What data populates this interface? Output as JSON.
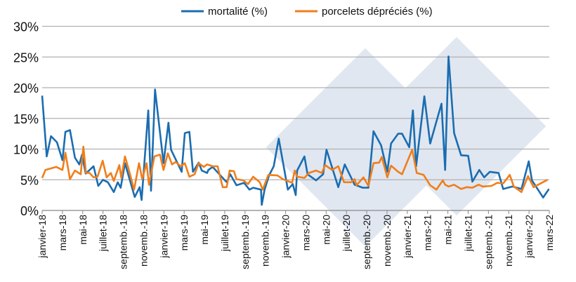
{
  "chart_data": {
    "type": "line",
    "title": "",
    "xlabel": "",
    "ylabel": "",
    "ylim": [
      0,
      30
    ],
    "xlim": [
      "2018-01-01",
      "2022-03-01"
    ],
    "grid": "horizontal",
    "legend_position": "top",
    "y_ticks": [
      "0%",
      "5%",
      "10%",
      "15%",
      "20%",
      "25%",
      "30%"
    ],
    "x_ticks": [
      "janvier-18",
      "mars-18",
      "mai-18",
      "juillet-18",
      "septemb.-18",
      "novemb.-18",
      "janvier-19",
      "mars-19",
      "mai-19",
      "juillet-19",
      "septemb.-19",
      "novemb.-19",
      "janvier-20",
      "mars-20",
      "mai-20",
      "juillet-20",
      "septemb.-20",
      "novemb.-20",
      "janvier-21",
      "mars-21",
      "mai-21",
      "juillet-21",
      "septemb.-21",
      "novemb.-21",
      "janvier-22",
      "mars-22"
    ],
    "series": [
      {
        "name": "mortalité (%)",
        "color": "#1b6db0",
        "points": [
          [
            "2018-01-01",
            18.7
          ],
          [
            "2018-01-15",
            8.8
          ],
          [
            "2018-01-28",
            12.1
          ],
          [
            "2018-02-14",
            11.1
          ],
          [
            "2018-03-01",
            8.2
          ],
          [
            "2018-03-10",
            12.8
          ],
          [
            "2018-03-24",
            13.1
          ],
          [
            "2018-04-08",
            8.6
          ],
          [
            "2018-04-21",
            7.5
          ],
          [
            "2018-04-29",
            9.1
          ],
          [
            "2018-05-10",
            6.0
          ],
          [
            "2018-06-03",
            7.2
          ],
          [
            "2018-06-17",
            4.0
          ],
          [
            "2018-07-01",
            5.0
          ],
          [
            "2018-07-16",
            4.6
          ],
          [
            "2018-08-03",
            3.0
          ],
          [
            "2018-08-15",
            4.6
          ],
          [
            "2018-08-24",
            3.7
          ],
          [
            "2018-09-06",
            7.7
          ],
          [
            "2018-10-05",
            2.2
          ],
          [
            "2018-10-20",
            3.8
          ],
          [
            "2018-10-26",
            1.7
          ],
          [
            "2018-11-15",
            16.3
          ],
          [
            "2018-11-23",
            3.2
          ],
          [
            "2018-12-05",
            19.7
          ],
          [
            "2018-12-31",
            7.7
          ],
          [
            "2019-01-15",
            14.3
          ],
          [
            "2019-01-23",
            9.9
          ],
          [
            "2019-02-22",
            6.3
          ],
          [
            "2019-03-03",
            12.6
          ],
          [
            "2019-03-17",
            12.8
          ],
          [
            "2019-03-28",
            6.3
          ],
          [
            "2019-04-14",
            7.8
          ],
          [
            "2019-04-23",
            6.5
          ],
          [
            "2019-05-09",
            6.1
          ],
          [
            "2019-05-13",
            6.6
          ],
          [
            "2019-05-26",
            7.1
          ],
          [
            "2019-07-07",
            4.6
          ],
          [
            "2019-07-18",
            5.9
          ],
          [
            "2019-08-06",
            4.1
          ],
          [
            "2019-08-29",
            4.5
          ],
          [
            "2019-09-14",
            3.4
          ],
          [
            "2019-09-25",
            3.7
          ],
          [
            "2019-10-19",
            3.4
          ],
          [
            "2019-10-21",
            0.9
          ],
          [
            "2019-10-30",
            3.4
          ],
          [
            "2019-11-12",
            5.7
          ],
          [
            "2019-11-26",
            7.2
          ],
          [
            "2019-12-11",
            11.7
          ],
          [
            "2020-01-08",
            3.4
          ],
          [
            "2020-01-23",
            4.3
          ],
          [
            "2020-02-01",
            2.5
          ],
          [
            "2020-02-05",
            6.5
          ],
          [
            "2020-02-26",
            8.8
          ],
          [
            "2020-03-06",
            5.9
          ],
          [
            "2020-04-01",
            4.9
          ],
          [
            "2020-04-22",
            5.9
          ],
          [
            "2020-05-02",
            9.9
          ],
          [
            "2020-06-07",
            3.8
          ],
          [
            "2020-06-26",
            7.5
          ],
          [
            "2020-07-26",
            4.2
          ],
          [
            "2020-08-20",
            3.7
          ],
          [
            "2020-09-06",
            3.7
          ],
          [
            "2020-09-21",
            12.9
          ],
          [
            "2020-10-14",
            10.6
          ],
          [
            "2020-11-02",
            6.3
          ],
          [
            "2020-11-13",
            10.9
          ],
          [
            "2020-12-04",
            12.5
          ],
          [
            "2020-12-16",
            12.5
          ],
          [
            "2021-01-07",
            10.3
          ],
          [
            "2021-01-18",
            16.3
          ],
          [
            "2021-01-28",
            7.2
          ],
          [
            "2021-02-20",
            18.6
          ],
          [
            "2021-03-09",
            10.9
          ],
          [
            "2021-04-12",
            17.4
          ],
          [
            "2021-04-23",
            6.6
          ],
          [
            "2021-05-03",
            25.1
          ],
          [
            "2021-05-20",
            12.6
          ],
          [
            "2021-06-10",
            9.0
          ],
          [
            "2021-07-01",
            8.9
          ],
          [
            "2021-07-14",
            4.7
          ],
          [
            "2021-08-04",
            6.6
          ],
          [
            "2021-08-19",
            5.4
          ],
          [
            "2021-09-05",
            6.3
          ],
          [
            "2021-10-01",
            6.1
          ],
          [
            "2021-10-15",
            3.5
          ],
          [
            "2021-11-12",
            3.9
          ],
          [
            "2021-12-09",
            3.5
          ],
          [
            "2021-12-31",
            8.0
          ],
          [
            "2022-01-10",
            4.9
          ],
          [
            "2022-02-12",
            2.1
          ],
          [
            "2022-02-28",
            3.5
          ]
        ]
      },
      {
        "name": "porcelets dépréciés (%)",
        "color": "#f07e1b",
        "points": [
          [
            "2018-01-01",
            5.3
          ],
          [
            "2018-01-11",
            6.6
          ],
          [
            "2018-02-12",
            7.1
          ],
          [
            "2018-03-01",
            6.6
          ],
          [
            "2018-03-10",
            9.4
          ],
          [
            "2018-03-24",
            5.1
          ],
          [
            "2018-04-08",
            6.5
          ],
          [
            "2018-04-25",
            5.9
          ],
          [
            "2018-05-03",
            10.4
          ],
          [
            "2018-05-11",
            6.1
          ],
          [
            "2018-05-22",
            6.1
          ],
          [
            "2018-06-03",
            5.4
          ],
          [
            "2018-06-15",
            5.5
          ],
          [
            "2018-06-30",
            8.1
          ],
          [
            "2018-07-12",
            5.4
          ],
          [
            "2018-07-25",
            6.1
          ],
          [
            "2018-08-03",
            4.8
          ],
          [
            "2018-08-20",
            7.4
          ],
          [
            "2018-08-26",
            5.3
          ],
          [
            "2018-09-06",
            8.8
          ],
          [
            "2018-09-18",
            6.5
          ],
          [
            "2018-10-03",
            3.4
          ],
          [
            "2018-10-18",
            7.7
          ],
          [
            "2018-10-28",
            5.1
          ],
          [
            "2018-11-10",
            7.7
          ],
          [
            "2018-11-17",
            4.2
          ],
          [
            "2018-12-03",
            8.8
          ],
          [
            "2018-12-20",
            9.1
          ],
          [
            "2018-12-31",
            6.6
          ],
          [
            "2019-01-13",
            9.3
          ],
          [
            "2019-01-26",
            7.5
          ],
          [
            "2019-02-05",
            7.9
          ],
          [
            "2019-02-20",
            7.2
          ],
          [
            "2019-03-03",
            7.7
          ],
          [
            "2019-03-17",
            5.5
          ],
          [
            "2019-04-02",
            5.9
          ],
          [
            "2019-04-14",
            7.7
          ],
          [
            "2019-04-29",
            7.1
          ],
          [
            "2019-05-09",
            7.5
          ],
          [
            "2019-05-26",
            7.2
          ],
          [
            "2019-06-10",
            7.2
          ],
          [
            "2019-06-25",
            3.8
          ],
          [
            "2019-07-07",
            3.8
          ],
          [
            "2019-07-16",
            6.5
          ],
          [
            "2019-07-29",
            6.4
          ],
          [
            "2019-08-06",
            5.1
          ],
          [
            "2019-08-27",
            4.9
          ],
          [
            "2019-09-10",
            4.3
          ],
          [
            "2019-09-25",
            5.5
          ],
          [
            "2019-10-15",
            4.6
          ],
          [
            "2019-10-24",
            3.4
          ],
          [
            "2019-11-10",
            5.8
          ],
          [
            "2019-12-07",
            5.7
          ],
          [
            "2019-12-24",
            5.1
          ],
          [
            "2020-01-21",
            4.5
          ],
          [
            "2020-01-29",
            6.5
          ],
          [
            "2020-02-05",
            5.5
          ],
          [
            "2020-02-26",
            5.3
          ],
          [
            "2020-03-10",
            6.1
          ],
          [
            "2020-04-01",
            6.5
          ],
          [
            "2020-04-18",
            6.1
          ],
          [
            "2020-04-28",
            7.4
          ],
          [
            "2020-05-19",
            6.6
          ],
          [
            "2020-06-07",
            7.2
          ],
          [
            "2020-06-24",
            4.6
          ],
          [
            "2020-07-15",
            4.6
          ],
          [
            "2020-07-26",
            5.1
          ],
          [
            "2020-08-01",
            4.1
          ],
          [
            "2020-08-22",
            5.4
          ],
          [
            "2020-09-06",
            4.0
          ],
          [
            "2020-09-21",
            7.7
          ],
          [
            "2020-10-08",
            7.8
          ],
          [
            "2020-10-16",
            8.7
          ],
          [
            "2020-11-02",
            5.4
          ],
          [
            "2020-11-13",
            7.3
          ],
          [
            "2020-12-04",
            6.3
          ],
          [
            "2020-12-16",
            5.9
          ],
          [
            "2021-01-16",
            9.9
          ],
          [
            "2021-01-30",
            6.1
          ],
          [
            "2021-02-18",
            5.8
          ],
          [
            "2021-03-09",
            4.1
          ],
          [
            "2021-03-28",
            3.4
          ],
          [
            "2021-04-16",
            4.9
          ],
          [
            "2021-04-23",
            4.2
          ],
          [
            "2021-05-03",
            3.9
          ],
          [
            "2021-05-20",
            4.2
          ],
          [
            "2021-06-10",
            3.5
          ],
          [
            "2021-06-27",
            3.8
          ],
          [
            "2021-07-14",
            3.7
          ],
          [
            "2021-08-02",
            4.2
          ],
          [
            "2021-08-15",
            3.9
          ],
          [
            "2021-09-10",
            4.0
          ],
          [
            "2021-09-27",
            4.5
          ],
          [
            "2021-10-15",
            4.4
          ],
          [
            "2021-11-04",
            5.8
          ],
          [
            "2021-11-16",
            3.9
          ],
          [
            "2021-12-09",
            3.0
          ],
          [
            "2021-12-29",
            5.6
          ],
          [
            "2022-01-15",
            3.8
          ],
          [
            "2022-02-24",
            5.0
          ]
        ]
      }
    ]
  }
}
